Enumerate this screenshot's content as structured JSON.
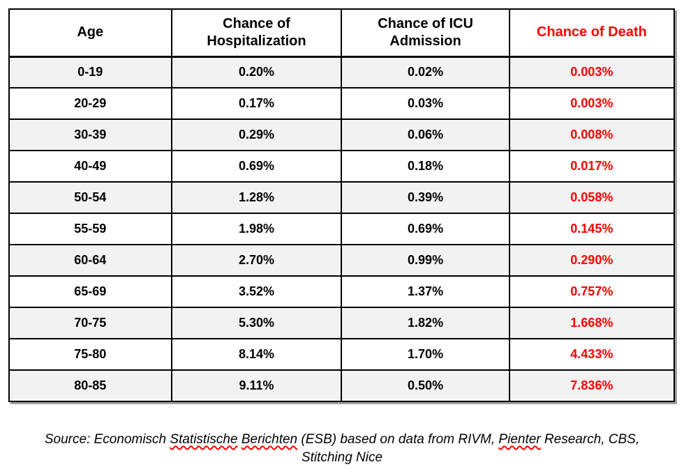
{
  "table": {
    "headers": [
      {
        "id": "age",
        "label": "Age",
        "death_column": false
      },
      {
        "id": "hospitalization",
        "label": "Chance of\nHospitalization",
        "death_column": false
      },
      {
        "id": "icu",
        "label": "Chance of ICU\nAdmission",
        "death_column": false
      },
      {
        "id": "death",
        "label": "Chance of Death",
        "death_column": true
      }
    ],
    "rows": [
      {
        "age": "0-19",
        "hospitalization": "0.20%",
        "icu": "0.02%",
        "death": "0.003%"
      },
      {
        "age": "20-29",
        "hospitalization": "0.17%",
        "icu": "0.03%",
        "death": "0.003%"
      },
      {
        "age": "30-39",
        "hospitalization": "0.29%",
        "icu": "0.06%",
        "death": "0.008%"
      },
      {
        "age": "40-49",
        "hospitalization": "0.69%",
        "icu": "0.18%",
        "death": "0.017%"
      },
      {
        "age": "50-54",
        "hospitalization": "1.28%",
        "icu": "0.39%",
        "death": "0.058%"
      },
      {
        "age": "55-59",
        "hospitalization": "1.98%",
        "icu": "0.69%",
        "death": "0.145%"
      },
      {
        "age": "60-64",
        "hospitalization": "2.70%",
        "icu": "0.99%",
        "death": "0.290%"
      },
      {
        "age": "65-69",
        "hospitalization": "3.52%",
        "icu": "1.37%",
        "death": "0.757%"
      },
      {
        "age": "70-75",
        "hospitalization": "5.30%",
        "icu": "1.82%",
        "death": "1.668%"
      },
      {
        "age": "75-80",
        "hospitalization": "8.14%",
        "icu": "1.70%",
        "death": "4.433%"
      },
      {
        "age": "80-85",
        "hospitalization": "9.11%",
        "icu": "0.50%",
        "death": "7.836%"
      }
    ]
  },
  "source": {
    "lines": [
      {
        "segments": [
          {
            "text": "Source: Economisch ",
            "misspelled": false
          },
          {
            "text": "Statistische",
            "misspelled": true
          },
          {
            "text": " ",
            "misspelled": false
          },
          {
            "text": "Berichten",
            "misspelled": true
          },
          {
            "text": " (ESB) based on data from RIVM, ",
            "misspelled": false
          },
          {
            "text": "Pienter",
            "misspelled": true
          },
          {
            "text": " Research, CBS,",
            "misspelled": false
          }
        ]
      },
      {
        "segments": [
          {
            "text": "Stitching Nice",
            "misspelled": false
          }
        ]
      }
    ]
  },
  "colors": {
    "death_accent": "#ff0000",
    "row_stripe": "#f2f2f2",
    "border": "#000000",
    "text": "#000000",
    "misspell_underline": "#ff0000"
  },
  "chart_data": {
    "type": "table",
    "title": "",
    "columns": [
      "Age",
      "Chance of Hospitalization",
      "Chance of ICU Admission",
      "Chance of Death"
    ],
    "categories": [
      "0-19",
      "20-29",
      "30-39",
      "40-49",
      "50-54",
      "55-59",
      "60-64",
      "65-69",
      "70-75",
      "75-80",
      "80-85"
    ],
    "series": [
      {
        "name": "Chance of Hospitalization",
        "unit": "%",
        "values": [
          0.2,
          0.17,
          0.29,
          0.69,
          1.28,
          1.98,
          2.7,
          3.52,
          5.3,
          8.14,
          9.11
        ]
      },
      {
        "name": "Chance of ICU Admission",
        "unit": "%",
        "values": [
          0.02,
          0.03,
          0.06,
          0.18,
          0.39,
          0.69,
          0.99,
          1.37,
          1.82,
          1.7,
          0.5
        ]
      },
      {
        "name": "Chance of Death",
        "unit": "%",
        "values": [
          0.003,
          0.003,
          0.008,
          0.017,
          0.058,
          0.145,
          0.29,
          0.757,
          1.668,
          4.433,
          7.836
        ]
      }
    ],
    "source_note": "Source: Economisch Statistische Berichten (ESB) based on data from RIVM, Pienter Research, CBS, Stitching Nice",
    "layout_hints": {
      "striped_rows": "odd data rows shaded light gray",
      "death_column_color": "#ff0000",
      "all_text_bold": true,
      "grid": true
    }
  }
}
